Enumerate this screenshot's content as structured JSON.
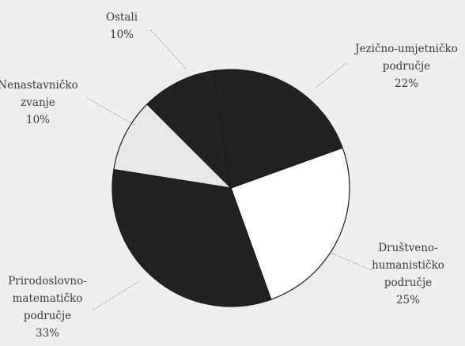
{
  "chart_data": {
    "type": "pie",
    "title": "",
    "legend": "none",
    "slices": [
      {
        "label_lines": [
          "Ostali",
          "10%"
        ],
        "value": 10,
        "color": "#222222"
      },
      {
        "label_lines": [
          "Jezično-umjetničko",
          "područje",
          "22%"
        ],
        "value": 22,
        "color": "#222222"
      },
      {
        "label_lines": [
          "Društveno-",
          "humanističko",
          "područje",
          "25%"
        ],
        "value": 25,
        "color": "#ffffff"
      },
      {
        "label_lines": [
          "Prirodoslovno-",
          "matematičko",
          "područje",
          "33%"
        ],
        "value": 33,
        "color": "#222222"
      },
      {
        "label_lines": [
          "Nenastavničko",
          "zvanje",
          "10%"
        ],
        "value": 10,
        "color": "#e8e8e8"
      }
    ]
  }
}
